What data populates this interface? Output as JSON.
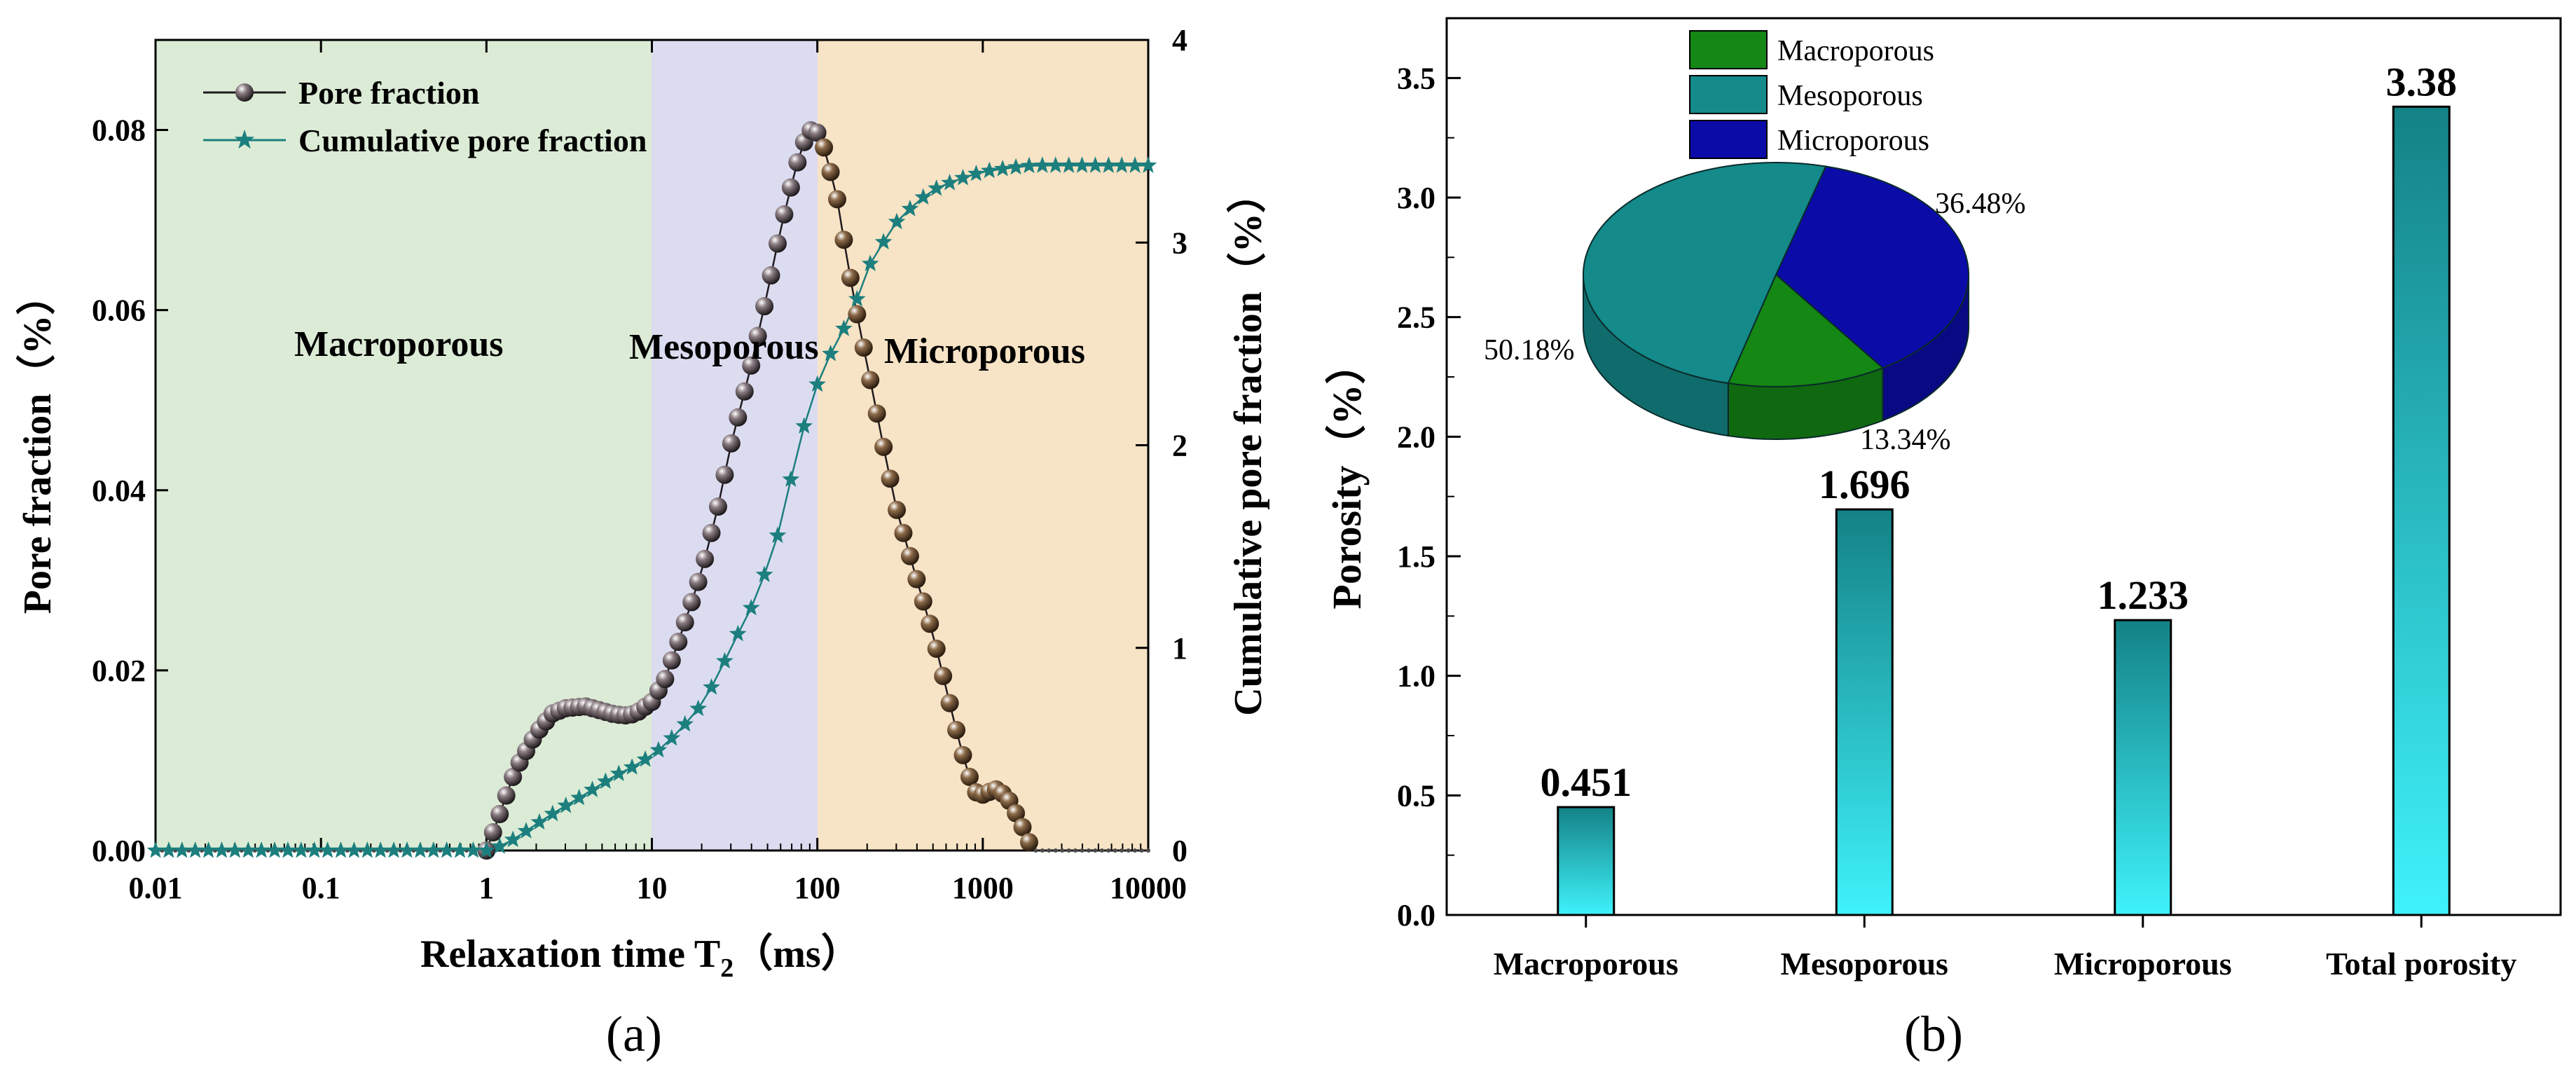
{
  "colors": {
    "macro_zone": "#dcebd6",
    "meso_zone": "#dcdcf1",
    "micro_zone": "#f7e3c5",
    "pore_curve": "#1f1b1f",
    "cumulative": "#1c7f7e",
    "pie_macro": "#148714",
    "pie_meso": "#148a8a",
    "pie_micro": "#0b0ba8",
    "bar_top": "#138286",
    "bar_bottom": "#3ff2fb"
  },
  "chart_data": [
    {
      "id": "a",
      "type": "line",
      "panel_label": "(a)",
      "xlabel": "Relaxation time T2（ms）",
      "xlabel_main": "Relaxation time T",
      "xlabel_sub": "2",
      "xlabel_unit": "（ms）",
      "ylabel_left": "Pore fraction（%）",
      "ylabel_right": "Cumulative pore fraction（%）",
      "x_scale": "log",
      "xlim": [
        0.01,
        10000
      ],
      "ylim_left": [
        0,
        0.09
      ],
      "ylim_right": [
        0,
        4
      ],
      "x_ticks": [
        "0.01",
        "0.1",
        "1",
        "10",
        "100",
        "1000",
        "10000"
      ],
      "y_ticks_left": [
        "0.00",
        "0.02",
        "0.04",
        "0.06",
        "0.08"
      ],
      "y_ticks_right": [
        "0",
        "1",
        "2",
        "3",
        "4"
      ],
      "legend_position": "top-left",
      "regions": [
        {
          "name": "Macroporous",
          "x_range": [
            0.01,
            10
          ],
          "label": "Macroporous"
        },
        {
          "name": "Mesoporous",
          "x_range": [
            10,
            100
          ],
          "label": "Mesoporous"
        },
        {
          "name": "Microporous",
          "x_range": [
            100,
            10000
          ],
          "label": "Microporous"
        }
      ],
      "series": [
        {
          "name": "Pore fraction",
          "axis": "left",
          "marker": "sphere",
          "points": [
            [
              0.01,
              0
            ],
            [
              1,
              0
            ],
            [
              1.2,
              0.004
            ],
            [
              1.5,
              0.009
            ],
            [
              2,
              0.013
            ],
            [
              2.5,
              0.0152
            ],
            [
              3,
              0.0158
            ],
            [
              4,
              0.016
            ],
            [
              5,
              0.0155
            ],
            [
              6,
              0.0151
            ],
            [
              7,
              0.015
            ],
            [
              8,
              0.0152
            ],
            [
              10,
              0.0165
            ],
            [
              12,
              0.019
            ],
            [
              15,
              0.024
            ],
            [
              20,
              0.031
            ],
            [
              25,
              0.038
            ],
            [
              30,
              0.045
            ],
            [
              40,
              0.054
            ],
            [
              50,
              0.062
            ],
            [
              60,
              0.069
            ],
            [
              70,
              0.074
            ],
            [
              80,
              0.078
            ],
            [
              90,
              0.08
            ],
            [
              100,
              0.0797
            ],
            [
              110,
              0.078
            ],
            [
              130,
              0.073
            ],
            [
              150,
              0.066
            ],
            [
              180,
              0.058
            ],
            [
              200,
              0.054
            ],
            [
              250,
              0.045
            ],
            [
              300,
              0.038
            ],
            [
              400,
              0.03
            ],
            [
              500,
              0.024
            ],
            [
              600,
              0.018
            ],
            [
              700,
              0.013
            ],
            [
              800,
              0.009
            ],
            [
              900,
              0.0065
            ],
            [
              1000,
              0.0062
            ],
            [
              1200,
              0.0068
            ],
            [
              1400,
              0.006
            ],
            [
              1600,
              0.004
            ],
            [
              1800,
              0.002
            ],
            [
              2000,
              0
            ],
            [
              10000,
              0
            ]
          ]
        },
        {
          "name": "Cumulative pore fraction",
          "axis": "right",
          "marker": "star",
          "points": [
            [
              0.01,
              0
            ],
            [
              1,
              0
            ],
            [
              1.2,
              0.02
            ],
            [
              1.5,
              0.06
            ],
            [
              2,
              0.13
            ],
            [
              2.5,
              0.18
            ],
            [
              3,
              0.22
            ],
            [
              4,
              0.28
            ],
            [
              5,
              0.33
            ],
            [
              6,
              0.37
            ],
            [
              8,
              0.42
            ],
            [
              10,
              0.47
            ],
            [
              12,
              0.52
            ],
            [
              15,
              0.6
            ],
            [
              20,
              0.72
            ],
            [
              25,
              0.86
            ],
            [
              30,
              1.0
            ],
            [
              40,
              1.2
            ],
            [
              50,
              1.4
            ],
            [
              60,
              1.6
            ],
            [
              70,
              1.85
            ],
            [
              80,
              2.05
            ],
            [
              100,
              2.3
            ],
            [
              120,
              2.45
            ],
            [
              150,
              2.6
            ],
            [
              180,
              2.75
            ],
            [
              200,
              2.87
            ],
            [
              250,
              3.0
            ],
            [
              300,
              3.1
            ],
            [
              400,
              3.2
            ],
            [
              500,
              3.26
            ],
            [
              700,
              3.31
            ],
            [
              1000,
              3.35
            ],
            [
              1500,
              3.37
            ],
            [
              2000,
              3.38
            ],
            [
              10000,
              3.38
            ]
          ]
        }
      ]
    },
    {
      "id": "b",
      "type": "bar",
      "panel_label": "(b)",
      "ylabel": "Porosity（%）",
      "ylim": [
        0,
        3.75
      ],
      "y_ticks": [
        "0.0",
        "0.5",
        "1.0",
        "1.5",
        "2.0",
        "2.5",
        "3.0",
        "3.5"
      ],
      "categories": [
        "Macroporous",
        "Mesoporous",
        "Microporous",
        "Total porosity"
      ],
      "values": [
        0.451,
        1.696,
        1.233,
        3.38
      ],
      "value_labels": [
        "0.451",
        "1.696",
        "1.233",
        "3.38"
      ]
    },
    {
      "id": "b-inset",
      "type": "pie",
      "style": "3d",
      "legend": [
        "Macroporous",
        "Mesoporous",
        "Microporous"
      ],
      "slices": [
        {
          "name": "Macroporous",
          "value": 13.34,
          "label": "13.34%"
        },
        {
          "name": "Mesoporous",
          "value": 50.18,
          "label": "50.18%"
        },
        {
          "name": "Microporous",
          "value": 36.48,
          "label": "36.48%"
        }
      ]
    }
  ]
}
